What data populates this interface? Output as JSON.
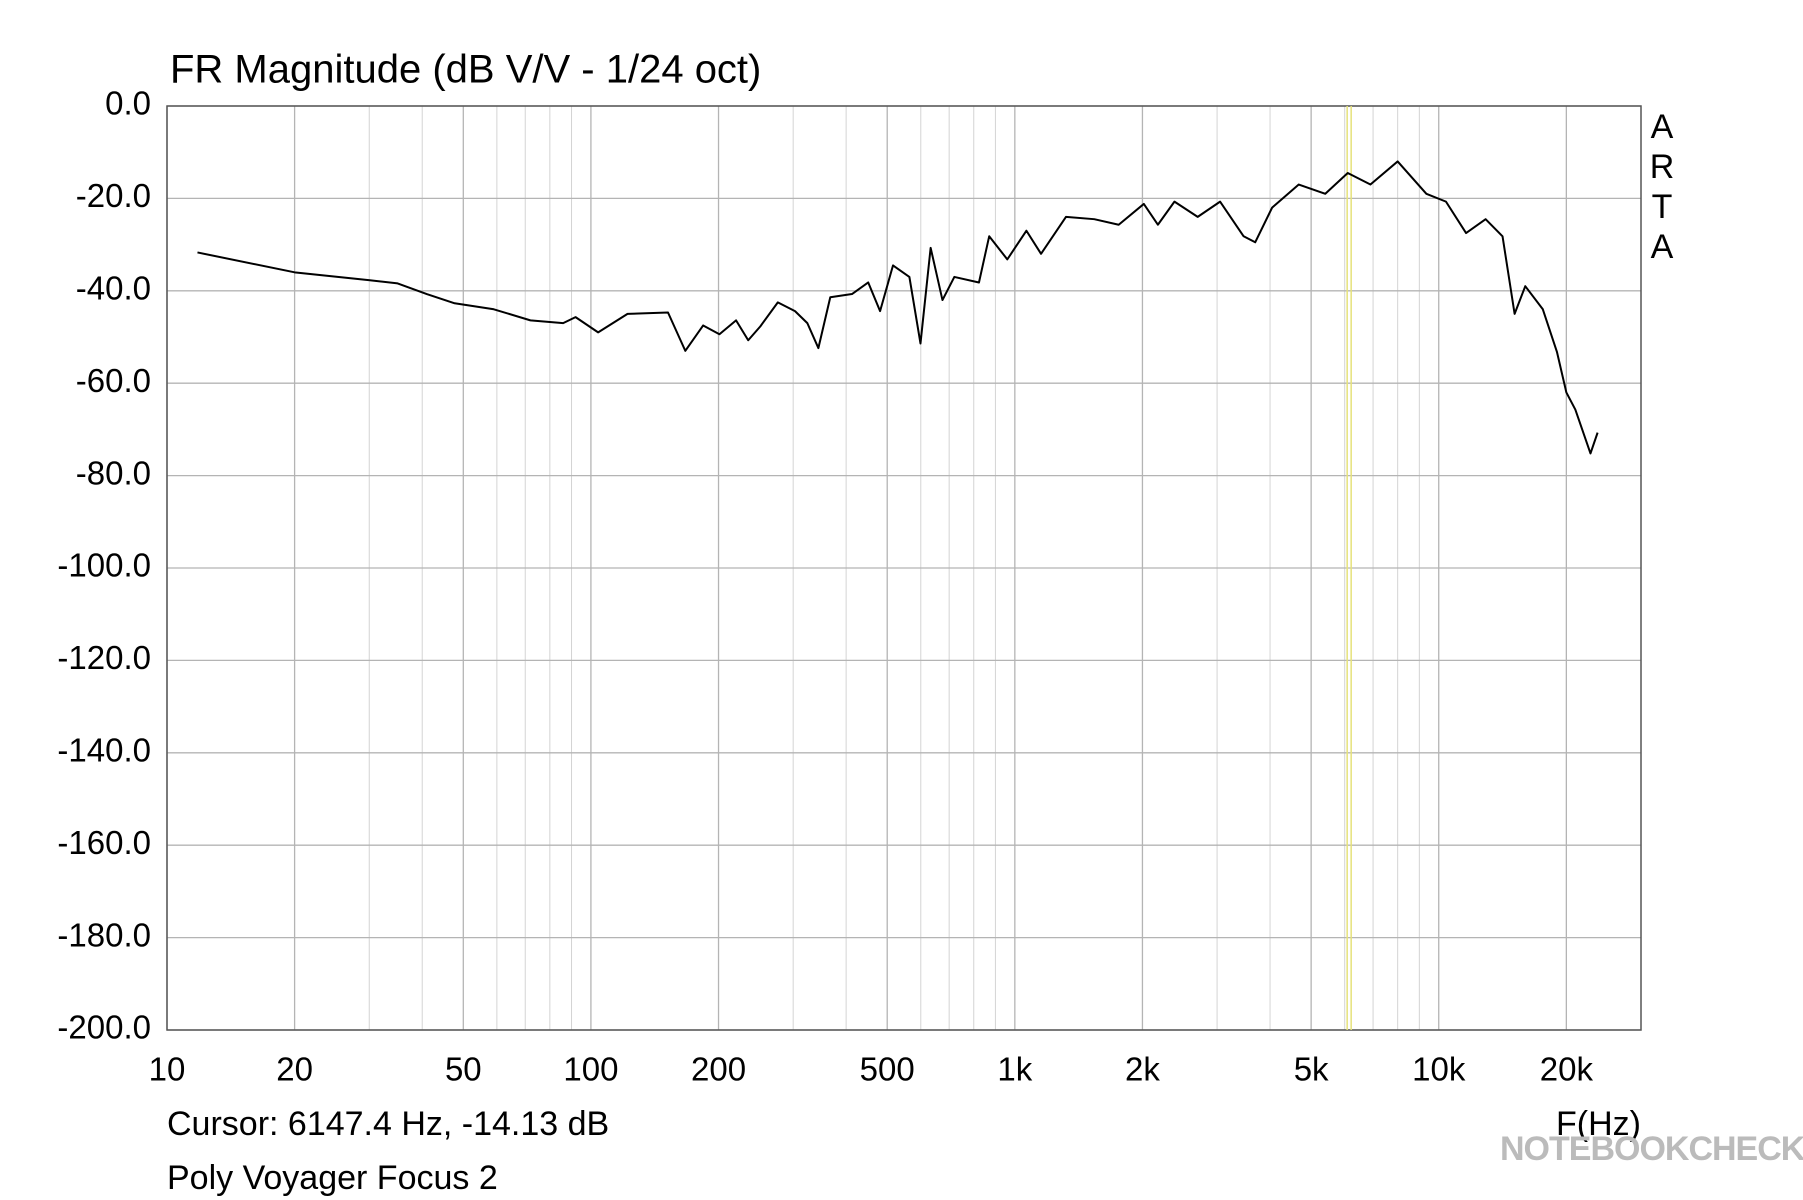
{
  "chart_data": {
    "type": "line",
    "title": "FR Magnitude (dB V/V - 1/24 oct)",
    "subtitle": "Poly Voyager Focus 2",
    "x_label": "F(Hz)",
    "watermark": "ARTA",
    "watermark2": "NOTEBOOKCHECK",
    "cursor": {
      "label": "Cursor: 6147.4 Hz, -14.13 dB",
      "x": 6147.4,
      "color": "#e6e27a"
    },
    "xlog": true,
    "grid": true,
    "xlim": [
      10,
      30000
    ],
    "ylim": [
      -200,
      0
    ],
    "xticks": [
      10,
      20,
      50,
      100,
      200,
      500,
      {
        "value": 1000,
        "label": "1k"
      },
      {
        "value": 2000,
        "label": "2k"
      },
      {
        "value": 5000,
        "label": "5k"
      },
      {
        "value": 10000,
        "label": "10k"
      },
      {
        "value": 20000,
        "label": "20k"
      }
    ],
    "xminor": [
      30,
      40,
      60,
      70,
      80,
      90,
      300,
      400,
      600,
      700,
      800,
      900,
      3000,
      4000,
      6000,
      7000,
      8000,
      9000,
      30000
    ],
    "yticks": [
      {
        "value": 0,
        "label": "0.0"
      },
      {
        "value": -20,
        "label": "-20.0"
      },
      {
        "value": -40,
        "label": "-40.0"
      },
      {
        "value": -60,
        "label": "-60.0"
      },
      {
        "value": -80,
        "label": "-80.0"
      },
      {
        "value": -100,
        "label": "-100.0"
      },
      {
        "value": -120,
        "label": "-120.0"
      },
      {
        "value": -140,
        "label": "-140.0"
      },
      {
        "value": -160,
        "label": "-160.0"
      },
      {
        "value": -180,
        "label": "-180.0"
      },
      {
        "value": -200,
        "label": "-200.0"
      }
    ],
    "x": [
      11.8,
      20,
      29.9,
      35,
      41,
      47.7,
      59,
      72,
      86,
      92,
      104,
      122,
      152,
      167,
      184,
      201,
      220,
      235,
      251,
      276,
      303,
      324,
      344,
      367,
      413,
      451,
      481,
      516,
      564,
      599,
      633,
      675,
      720,
      823,
      870,
      960,
      1065,
      1153,
      1320,
      1540,
      1758,
      2015,
      2175,
      2380,
      2700,
      3050,
      3465,
      3690,
      4045,
      4675,
      5400,
      6100,
      6900,
      8000,
      9350,
      10400,
      11600,
      12900,
      14140,
      15100,
      16000,
      17600,
      19000,
      20000,
      21000,
      22800,
      23700
    ],
    "series": [
      {
        "name": "FR",
        "color": "#000000",
        "values": [
          -31.7,
          -36,
          -37.7,
          -38.4,
          -40.7,
          -42.7,
          -44,
          -46.4,
          -47,
          -45.7,
          -49,
          -45,
          -44.7,
          -53,
          -47.5,
          -49.4,
          -46.4,
          -50.7,
          -47.7,
          -42.5,
          -44.4,
          -47,
          -52.4,
          -41.4,
          -40.7,
          -38.2,
          -44.4,
          -34.5,
          -37,
          -51.4,
          -30.7,
          -42,
          -37,
          -38.2,
          -28.2,
          -33.2,
          -27,
          -32,
          -24,
          -24.5,
          -25.7,
          -21.2,
          -25.7,
          -20.7,
          -24,
          -20.7,
          -28.2,
          -29.5,
          -22,
          -17,
          -19,
          -14.5,
          -17,
          -12,
          -19,
          -20.7,
          -27.5,
          -24.5,
          -28.2,
          -45,
          -39,
          -44,
          -53.2,
          -62,
          -65.7,
          -75.2,
          -70.7
        ]
      }
    ]
  }
}
